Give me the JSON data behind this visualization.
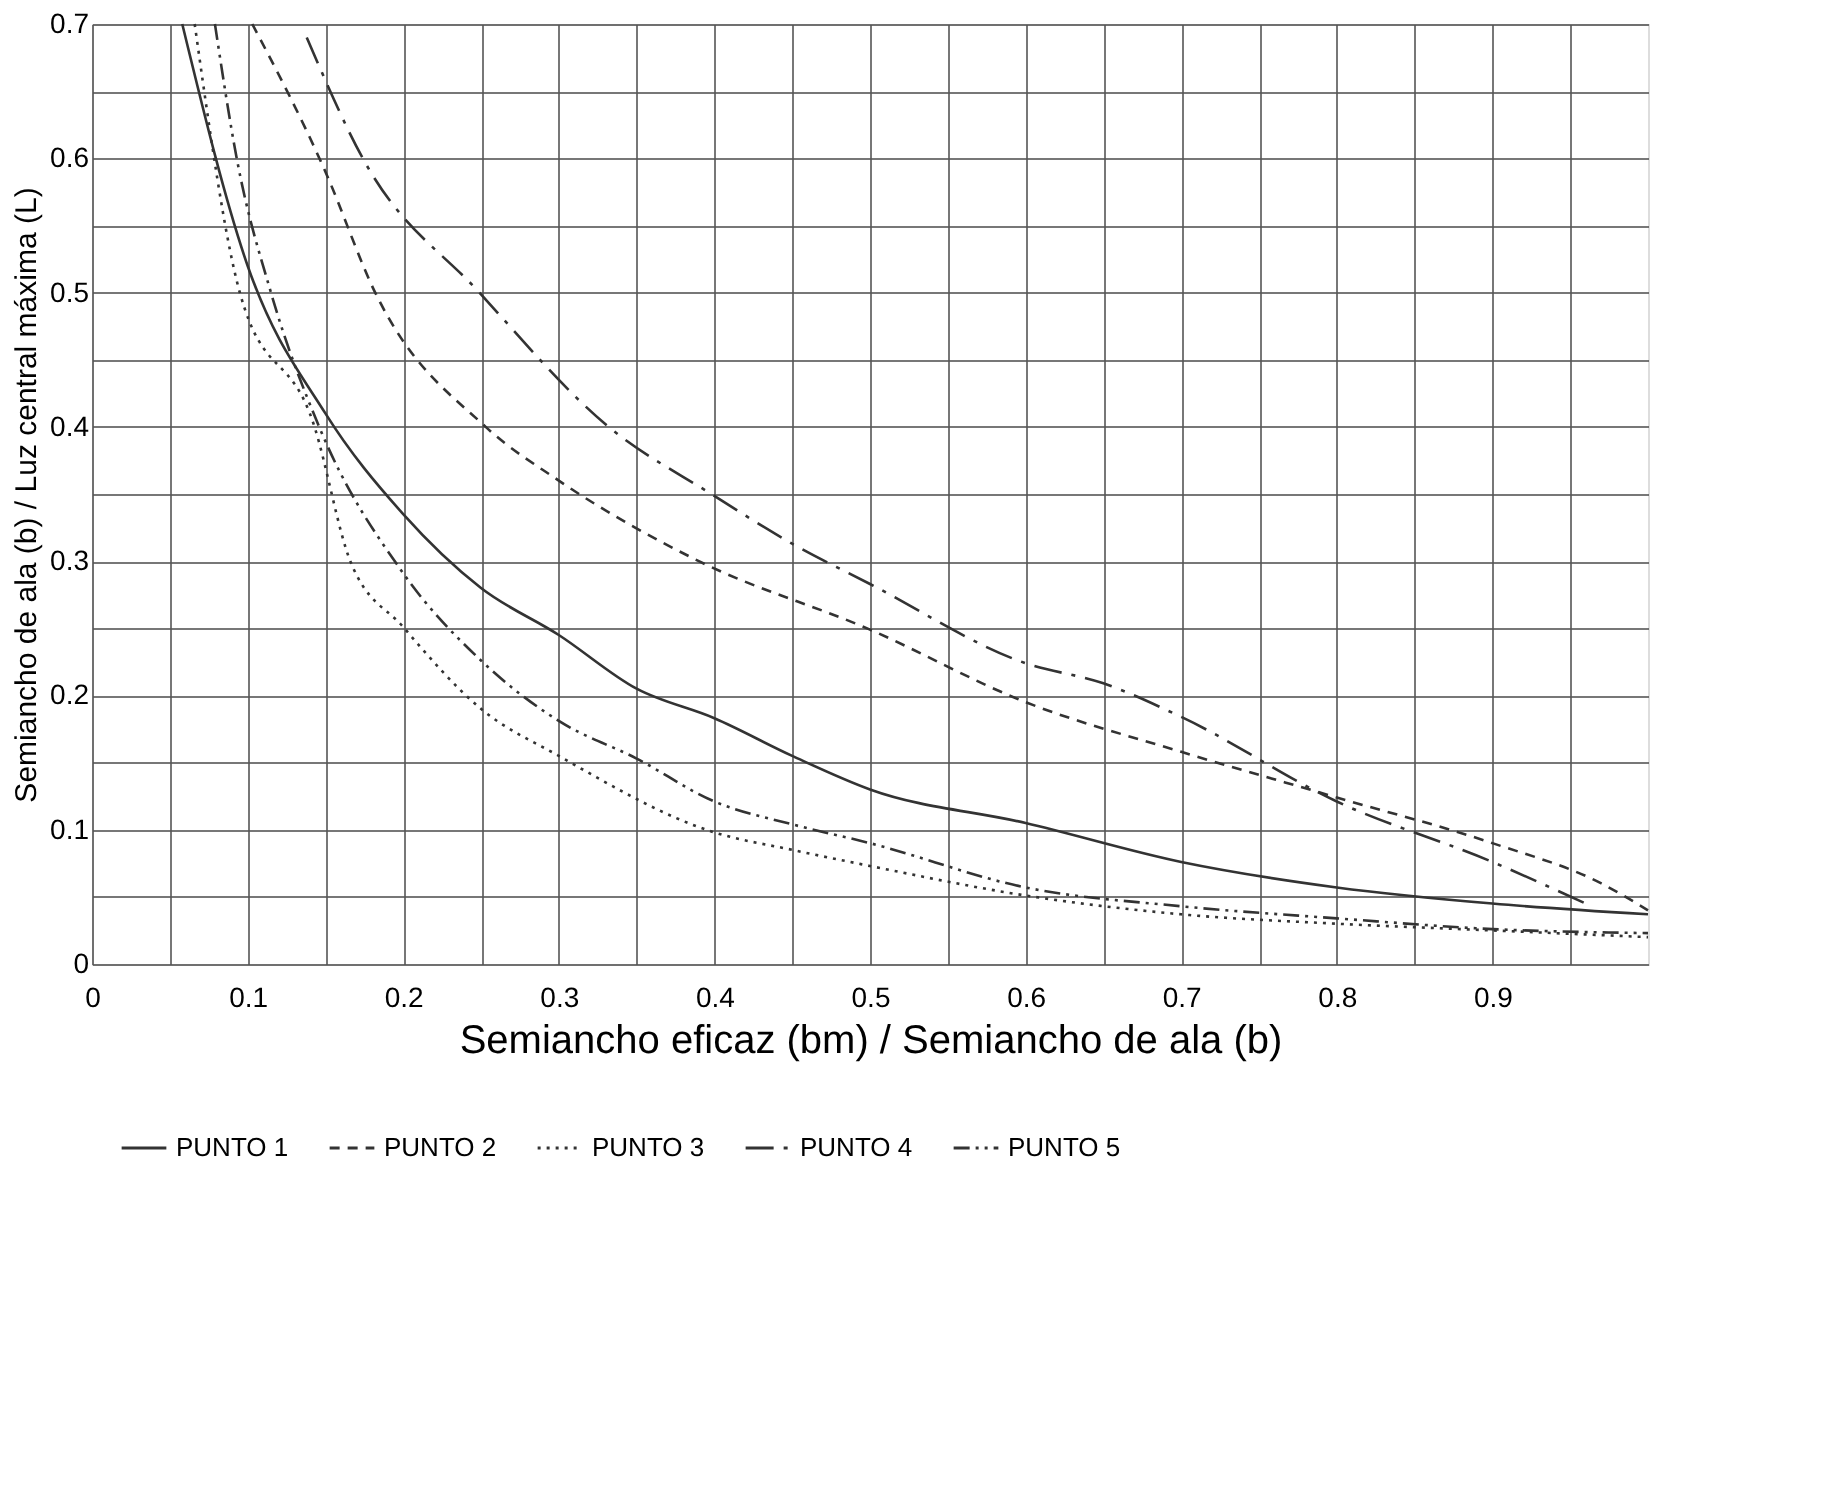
{
  "chart_data": {
    "type": "line",
    "xlabel": "Semiancho eficaz (bm) / Semiancho de ala (b)",
    "ylabel": "Semiancho de ala (b) / Luz central máxima (L)",
    "xlim": [
      0,
      1
    ],
    "ylim": [
      0,
      0.7
    ],
    "xticks": [
      0,
      {
        "value": 0.05,
        "label": null
      },
      0.1,
      {
        "value": 0.15,
        "label": null
      },
      0.2,
      {
        "value": 0.25,
        "label": null
      },
      0.3,
      {
        "value": 0.35,
        "label": null
      },
      0.4,
      {
        "value": 0.45,
        "label": null
      },
      0.5,
      {
        "value": 0.55,
        "label": null
      },
      0.6,
      {
        "value": 0.65,
        "label": null
      },
      0.7,
      {
        "value": 0.75,
        "label": null
      },
      0.8,
      {
        "value": 0.85,
        "label": null
      },
      0.9,
      {
        "value": 0.95,
        "label": null
      }
    ],
    "yticks": [
      0,
      {
        "value": 0.05,
        "label": null
      },
      0.1,
      {
        "value": 0.15,
        "label": null
      },
      0.2,
      {
        "value": 0.25,
        "label": null
      },
      0.3,
      {
        "value": 0.35,
        "label": null
      },
      0.4,
      {
        "value": 0.45,
        "label": null
      },
      0.5,
      {
        "value": 0.55,
        "label": null
      },
      0.6,
      {
        "value": 0.65,
        "label": null
      },
      0.7
    ],
    "grid": true,
    "legend": "bottom",
    "marker": "none",
    "series": [
      {
        "name": "PUNTO 1",
        "color": "#333333",
        "line_style": "solid",
        "x": [
          0.058,
          0.1,
          0.15,
          0.2,
          0.25,
          0.3,
          0.35,
          0.4,
          0.45,
          0.5,
          0.6,
          0.7,
          0.8,
          0.9,
          1.0
        ],
        "values": [
          0.7,
          0.52,
          0.41,
          0.335,
          0.28,
          0.245,
          0.205,
          0.183,
          0.155,
          0.13,
          0.105,
          0.076,
          0.057,
          0.045,
          0.037
        ]
      },
      {
        "name": "PUNTO 2",
        "color": "#333333",
        "line_style": "dashed",
        "x": [
          0.103,
          0.15,
          0.182,
          0.253,
          0.3,
          0.39,
          0.5,
          0.6,
          0.7,
          0.8,
          0.9,
          0.97,
          1.0
        ],
        "values": [
          0.7,
          0.59,
          0.5,
          0.4,
          0.36,
          0.3,
          0.249,
          0.195,
          0.158,
          0.124,
          0.09,
          0.06,
          0.04
        ]
      },
      {
        "name": "PUNTO 3",
        "color": "#333333",
        "line_style": "dotted",
        "x": [
          0.066,
          0.095,
          0.143,
          0.166,
          0.2,
          0.25,
          0.3,
          0.4,
          0.45,
          0.5,
          0.6,
          0.7,
          0.8,
          0.9,
          1.0
        ],
        "values": [
          0.7,
          0.5,
          0.4,
          0.3,
          0.251,
          0.19,
          0.155,
          0.098,
          0.085,
          0.073,
          0.051,
          0.037,
          0.03,
          0.025,
          0.02
        ]
      },
      {
        "name": "PUNTO 4",
        "color": "#333333",
        "line_style": "dashed",
        "x": [
          0.138,
          0.174,
          0.249,
          0.332,
          0.398,
          0.45,
          0.5,
          0.6,
          0.65,
          0.7,
          0.8,
          0.9,
          0.96
        ],
        "values": [
          0.69,
          0.6,
          0.5,
          0.4,
          0.35,
          0.313,
          0.283,
          0.224,
          0.209,
          0.184,
          0.121,
          0.076,
          0.045
        ]
      },
      {
        "name": "PUNTO 5",
        "color": "#333333",
        "line_style": "dotted",
        "x": [
          0.079,
          0.093,
          0.115,
          0.146,
          0.2,
          0.25,
          0.3,
          0.35,
          0.4,
          0.45,
          0.5,
          0.6,
          0.7,
          0.8,
          0.9,
          1.0
        ],
        "values": [
          0.7,
          0.6,
          0.5,
          0.4,
          0.291,
          0.226,
          0.181,
          0.153,
          0.121,
          0.104,
          0.09,
          0.057,
          0.043,
          0.034,
          0.026,
          0.023
        ]
      }
    ]
  }
}
